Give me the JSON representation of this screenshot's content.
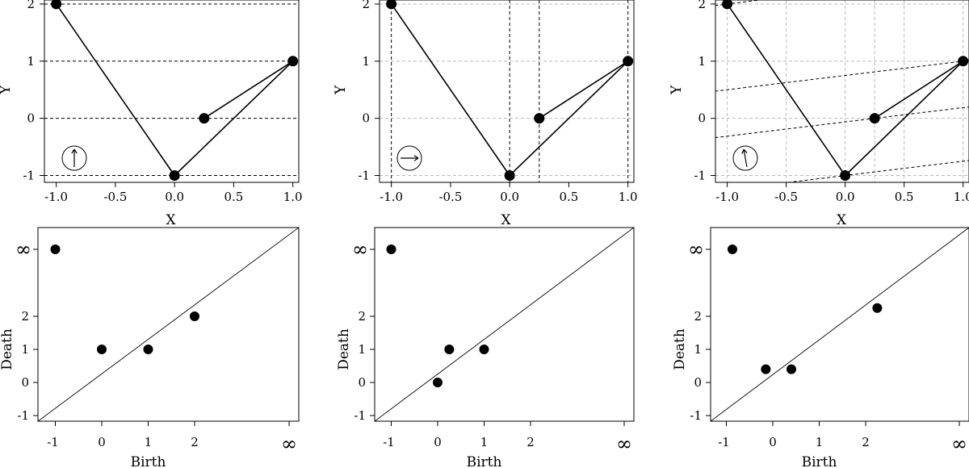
{
  "chart_data": [
    {
      "type": "line",
      "panel": "top-left",
      "xlabel": "X",
      "ylabel": "Y",
      "xticks": [
        "-1.0",
        "-0.5",
        "0.0",
        "0.5",
        "1.0"
      ],
      "yticks": [
        "-1",
        "0",
        "1",
        "2"
      ],
      "xlim": [
        -1.1,
        1.05
      ],
      "ylim": [
        -1.12,
        2.07
      ],
      "points": [
        [
          -1.0,
          2.0
        ],
        [
          0.0,
          -1.0
        ],
        [
          1.0,
          1.0
        ],
        [
          0.25,
          0.0
        ]
      ],
      "edges": [
        [
          0,
          1
        ],
        [
          1,
          2
        ],
        [
          2,
          3
        ]
      ],
      "filtration_direction_deg": 90,
      "filtration_lines": "horizontal dashed lines through each vertex"
    },
    {
      "type": "line",
      "panel": "top-middle",
      "xlabel": "X",
      "ylabel": "Y",
      "xticks": [
        "-1.0",
        "-0.5",
        "0.0",
        "0.5",
        "1.0"
      ],
      "yticks": [
        "-1",
        "0",
        "1",
        "2"
      ],
      "xlim": [
        -1.1,
        1.05
      ],
      "ylim": [
        -1.12,
        2.07
      ],
      "points": [
        [
          -1.0,
          2.0
        ],
        [
          0.0,
          -1.0
        ],
        [
          1.0,
          1.0
        ],
        [
          0.25,
          0.0
        ]
      ],
      "edges": [
        [
          0,
          1
        ],
        [
          1,
          2
        ],
        [
          2,
          3
        ]
      ],
      "filtration_direction_deg": 0,
      "filtration_lines": "vertical dashed lines through each vertex"
    },
    {
      "type": "line",
      "panel": "top-right",
      "xlabel": "X",
      "ylabel": "Y",
      "xticks": [
        "-1.0",
        "-0.5",
        "0.0",
        "0.5",
        "1.0"
      ],
      "yticks": [
        "-1",
        "0",
        "1",
        "2"
      ],
      "xlim": [
        -1.1,
        1.05
      ],
      "ylim": [
        -1.12,
        2.07
      ],
      "points": [
        [
          -1.0,
          2.0
        ],
        [
          0.0,
          -1.0
        ],
        [
          1.0,
          1.0
        ],
        [
          0.25,
          0.0
        ]
      ],
      "edges": [
        [
          0,
          1
        ],
        [
          1,
          2
        ],
        [
          2,
          3
        ]
      ],
      "filtration_direction_deg": 100,
      "filtration_lines": "slanted dashed lines through each vertex"
    },
    {
      "type": "scatter",
      "panel": "bottom-left",
      "xlabel": "Birth",
      "ylabel": "Death",
      "xticks": [
        "-1",
        "0",
        "1",
        "2"
      ],
      "yticks": [
        "-1",
        "0",
        "1",
        "2"
      ],
      "infinity_symbol": "∞",
      "xlim": [
        -1.2,
        4.0
      ],
      "ylim": [
        -1.2,
        4.0
      ],
      "diagonal": true,
      "points": [
        [
          -1,
          "∞"
        ],
        [
          0,
          1
        ],
        [
          1,
          1
        ],
        [
          2,
          2
        ]
      ]
    },
    {
      "type": "scatter",
      "panel": "bottom-middle",
      "xlabel": "Birth",
      "ylabel": "Death",
      "xticks": [
        "-1",
        "0",
        "1",
        "2"
      ],
      "yticks": [
        "-1",
        "0",
        "1",
        "2"
      ],
      "infinity_symbol": "∞",
      "xlim": [
        -1.2,
        4.0
      ],
      "ylim": [
        -1.2,
        4.0
      ],
      "diagonal": true,
      "points": [
        [
          -1,
          "∞"
        ],
        [
          0,
          0
        ],
        [
          0.25,
          1
        ],
        [
          1,
          1
        ]
      ]
    },
    {
      "type": "scatter",
      "panel": "bottom-right",
      "xlabel": "Birth",
      "ylabel": "Death",
      "xticks": [
        "-1",
        "0",
        "1",
        "2"
      ],
      "yticks": [
        "-1",
        "0",
        "1",
        "2"
      ],
      "infinity_symbol": "∞",
      "xlim": [
        -1.2,
        4.0
      ],
      "ylim": [
        -1.2,
        4.0
      ],
      "diagonal": true,
      "points": [
        [
          -0.87,
          "∞"
        ],
        [
          -0.15,
          0.4
        ],
        [
          0.4,
          0.4
        ],
        [
          2.25,
          2.25
        ]
      ]
    }
  ]
}
